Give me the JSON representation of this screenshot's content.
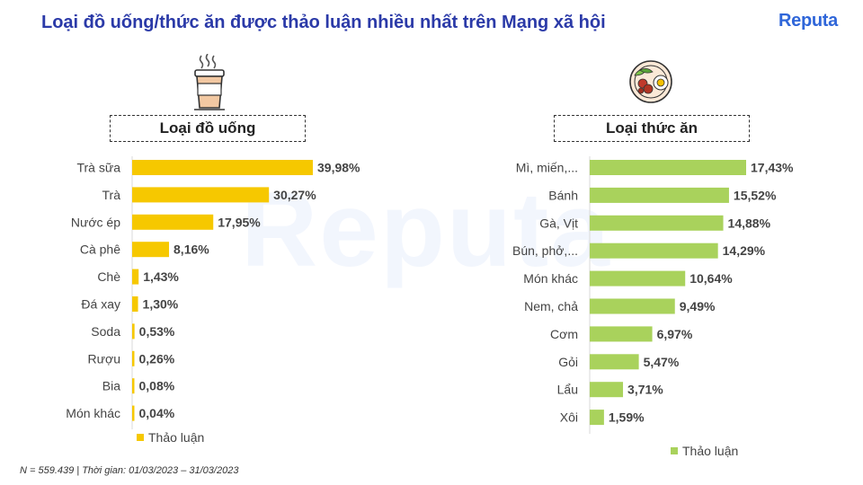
{
  "header": {
    "title": "Loại đồ uống/thức ăn được thảo luận nhiều nhất trên Mạng xã hội",
    "logo": "Reputa",
    "watermark": "Reputa"
  },
  "icons": {
    "drink": "coffee-cup-icon",
    "food": "food-plate-icon"
  },
  "footnote": "N = 559.439 | Thời gian: 01/03/2023 – 31/03/2023",
  "chart_data": [
    {
      "type": "bar",
      "orientation": "horizontal",
      "title": "Loại đồ uống",
      "categories": [
        "Trà sữa",
        "Trà",
        "Nước ép",
        "Cà phê",
        "Chè",
        "Đá xay",
        "Soda",
        "Rượu",
        "Bia",
        "Món khác"
      ],
      "series": [
        {
          "name": "Thảo luận",
          "values": [
            39.98,
            30.27,
            17.95,
            8.16,
            1.43,
            1.3,
            0.53,
            0.26,
            0.08,
            0.04
          ]
        }
      ],
      "value_labels": [
        "39,98%",
        "30,27%",
        "17,95%",
        "8,16%",
        "1,43%",
        "1,30%",
        "0,53%",
        "0,26%",
        "0,08%",
        "0,04%"
      ],
      "legend": "bottom",
      "color": "#f6c800"
    },
    {
      "type": "bar",
      "orientation": "horizontal",
      "title": "Loại thức ăn",
      "categories": [
        "Mì, miến,...",
        "Bánh",
        "Gà, Vịt",
        "Bún, phở,...",
        "Món khác",
        "Nem, chả",
        "Cơm",
        "Gỏi",
        "Lẩu",
        "Xôi"
      ],
      "series": [
        {
          "name": "Thảo luận",
          "values": [
            17.43,
            15.52,
            14.88,
            14.29,
            10.64,
            9.49,
            6.97,
            5.47,
            3.71,
            1.59
          ]
        }
      ],
      "value_labels": [
        "17,43%",
        "15,52%",
        "14,88%",
        "14,29%",
        "10,64%",
        "9,49%",
        "6,97%",
        "5,47%",
        "3,71%",
        "1,59%"
      ],
      "legend": "bottom",
      "color": "#a9d25c"
    }
  ]
}
